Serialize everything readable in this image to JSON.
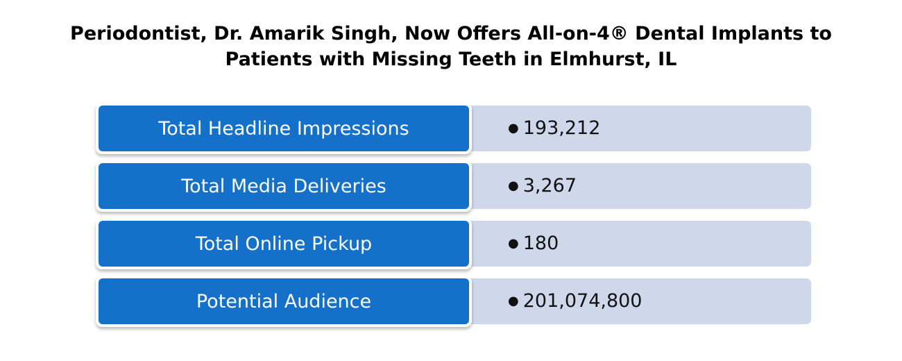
{
  "title": {
    "line1": "Periodontist, Dr. Amarik Singh, Now Offers All-on-4® Dental Implants to",
    "line2": "Patients with Missing Teeth in Elmhurst, IL"
  },
  "colors": {
    "label_fill": "#1470c8",
    "value_fill": "#cfd7ea",
    "title_text": "#000000"
  },
  "chart_data": {
    "type": "table",
    "title": "Periodontist, Dr. Amarik Singh, Now Offers All-on-4® Dental Implants to Patients with Missing Teeth in Elmhurst, IL",
    "rows": [
      {
        "label": "Total Headline Impressions",
        "value": "193,212"
      },
      {
        "label": "Total Media Deliveries",
        "value": "3,267"
      },
      {
        "label": "Total Online Pickup",
        "value": "180"
      },
      {
        "label": "Potential Audience",
        "value": "201,074,800"
      }
    ]
  }
}
